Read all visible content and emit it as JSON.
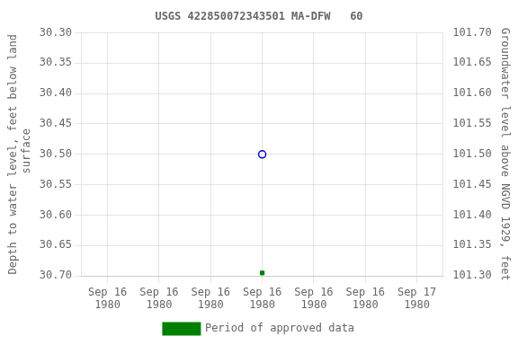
{
  "chart_data": {
    "type": "scatter",
    "title": "USGS 422850072343501 MA-DFW   60",
    "categories": [
      "Sep 16\n1980",
      "Sep 16\n1980",
      "Sep 16\n1980",
      "Sep 16\n1980",
      "Sep 16\n1980",
      "Sep 16\n1980",
      "Sep 17\n1980"
    ],
    "y_label": "Depth to water level, feet below land\n surface",
    "y2_label": "Groundwater level above NGVD 1929, feet",
    "ylim": [
      30.7,
      30.3
    ],
    "yticks": [
      {
        "value": 30.3,
        "label": "30.30"
      },
      30.35,
      {
        "value": 30.4,
        "label": "30.40"
      },
      30.45,
      {
        "value": 30.5,
        "label": "30.50"
      },
      30.55,
      {
        "value": 30.6,
        "label": "30.60"
      },
      30.65,
      {
        "value": 30.7,
        "label": "30.70"
      }
    ],
    "y2lim": [
      101.3,
      101.7
    ],
    "y2ticks": [
      {
        "value": 101.7,
        "label": "101.70"
      },
      101.65,
      {
        "value": 101.6,
        "label": "101.60"
      },
      101.55,
      {
        "value": 101.5,
        "label": "101.50"
      },
      101.45,
      {
        "value": 101.4,
        "label": "101.40"
      },
      101.35,
      {
        "value": 101.3,
        "label": "101.30"
      }
    ],
    "series": [
      {
        "color": "#0000cc",
        "marker": "circle",
        "values": [
          null,
          null,
          null,
          30.5,
          null,
          null,
          null
        ]
      },
      {
        "name": "Period of approved data",
        "color": "#008000",
        "marker": "square",
        "values": [
          null,
          null,
          null,
          30.695,
          null,
          null,
          null
        ]
      }
    ],
    "grid": true,
    "legend": "bottom"
  }
}
